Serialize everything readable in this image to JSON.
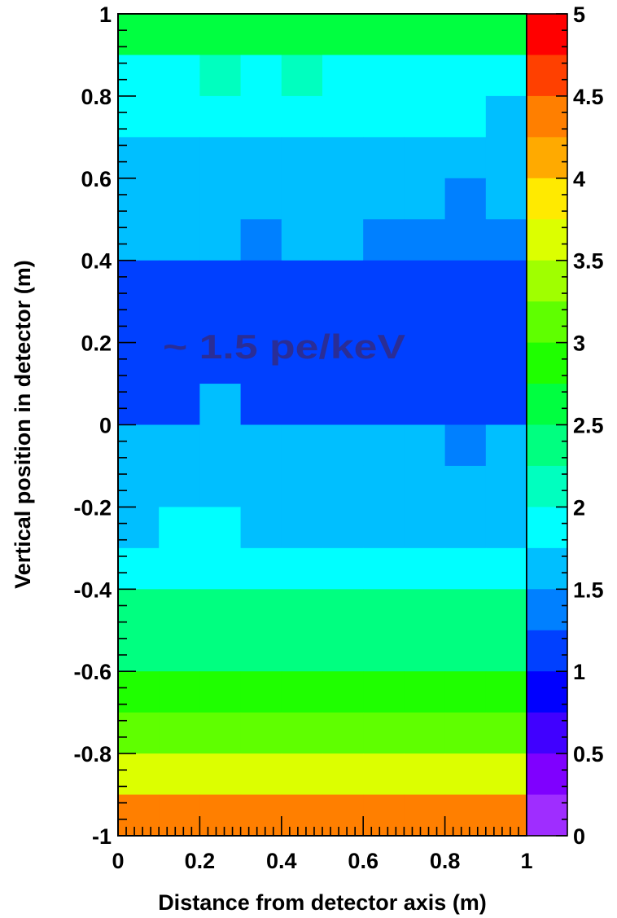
{
  "chart_data": {
    "type": "heatmap",
    "title": "",
    "xlabel": "Distance from detector axis (m)",
    "ylabel": "Vertical position in detector (m)",
    "xlim": [
      0,
      1
    ],
    "ylim": [
      -1,
      1
    ],
    "x_ticks": [
      "0",
      "0.2",
      "0.4",
      "0.6",
      "0.8",
      "1"
    ],
    "y_ticks": [
      "1",
      "0.8",
      "0.6",
      "0.4",
      "0.2",
      "0",
      "-0.2",
      "-0.4",
      "-0.6",
      "-0.8",
      "-1"
    ],
    "x_bin_edges": [
      0,
      0.1,
      0.2,
      0.3,
      0.4,
      0.5,
      0.6,
      0.7,
      0.8,
      0.9,
      1.0
    ],
    "y_bin_edges_top_down": [
      1.0,
      0.9,
      0.8,
      0.7,
      0.6,
      0.5,
      0.4,
      0.3,
      0.2,
      0.1,
      0.0,
      -0.1,
      -0.2,
      -0.3,
      -0.4,
      -0.5,
      -0.6,
      -0.7,
      -0.8,
      -0.9,
      -1.0
    ],
    "z_rows_top_down": [
      [
        2.6,
        2.6,
        2.6,
        2.6,
        2.6,
        2.6,
        2.6,
        2.6,
        2.6,
        2.6
      ],
      [
        1.9,
        1.9,
        2.1,
        1.9,
        2.1,
        1.9,
        1.9,
        1.9,
        1.9,
        1.9
      ],
      [
        1.9,
        1.9,
        1.9,
        1.9,
        1.9,
        1.9,
        1.9,
        1.9,
        1.9,
        1.6
      ],
      [
        1.6,
        1.6,
        1.6,
        1.6,
        1.6,
        1.6,
        1.6,
        1.6,
        1.6,
        1.6
      ],
      [
        1.6,
        1.6,
        1.6,
        1.6,
        1.6,
        1.6,
        1.6,
        1.6,
        1.3,
        1.6
      ],
      [
        1.6,
        1.6,
        1.6,
        1.3,
        1.6,
        1.6,
        1.3,
        1.3,
        1.3,
        1.3
      ],
      [
        1.2,
        1.2,
        1.2,
        1.2,
        1.2,
        1.2,
        1.2,
        1.2,
        1.2,
        1.2
      ],
      [
        1.2,
        1.2,
        1.2,
        1.2,
        1.2,
        1.2,
        1.2,
        1.2,
        1.2,
        1.2
      ],
      [
        1.2,
        1.2,
        1.2,
        1.2,
        1.2,
        1.2,
        1.2,
        1.2,
        1.2,
        1.2
      ],
      [
        1.2,
        1.2,
        1.6,
        1.2,
        1.2,
        1.2,
        1.2,
        1.2,
        1.2,
        1.2
      ],
      [
        1.6,
        1.6,
        1.6,
        1.6,
        1.6,
        1.6,
        1.6,
        1.6,
        1.3,
        1.6
      ],
      [
        1.6,
        1.6,
        1.6,
        1.6,
        1.6,
        1.6,
        1.6,
        1.6,
        1.6,
        1.6
      ],
      [
        1.6,
        1.9,
        1.9,
        1.6,
        1.6,
        1.6,
        1.6,
        1.6,
        1.6,
        1.6
      ],
      [
        1.9,
        1.9,
        1.9,
        1.9,
        1.9,
        1.9,
        1.9,
        1.9,
        1.9,
        1.9
      ],
      [
        2.3,
        2.3,
        2.3,
        2.3,
        2.3,
        2.3,
        2.3,
        2.3,
        2.3,
        2.3
      ],
      [
        2.5,
        2.5,
        2.5,
        2.5,
        2.5,
        2.5,
        2.5,
        2.5,
        2.5,
        2.5
      ],
      [
        2.8,
        2.8,
        2.8,
        2.8,
        2.8,
        2.8,
        2.8,
        2.8,
        2.8,
        2.8
      ],
      [
        3.2,
        3.2,
        3.2,
        3.2,
        3.2,
        3.2,
        3.2,
        3.2,
        3.2,
        3.2
      ],
      [
        3.6,
        3.6,
        3.6,
        3.6,
        3.6,
        3.6,
        3.6,
        3.6,
        3.6,
        3.6
      ],
      [
        4.4,
        4.4,
        4.4,
        4.4,
        4.4,
        4.4,
        4.4,
        4.4,
        4.4,
        4.4
      ]
    ],
    "zlim": [
      0,
      5
    ],
    "z_ticks": [
      "5",
      "4.5",
      "4",
      "3.5",
      "3",
      "2.5",
      "2",
      "1.5",
      "1",
      "0.5",
      "0"
    ],
    "palette_top_down": [
      "#ff0000",
      "#ff4000",
      "#ff7f00",
      "#ffaa00",
      "#ffea00",
      "#dcff00",
      "#a0ff00",
      "#5fff00",
      "#1fff00",
      "#00ff40",
      "#00ff80",
      "#00ffbf",
      "#00ffff",
      "#00bfff",
      "#0080ff",
      "#0040ff",
      "#0000ff",
      "#4000ff",
      "#7f00ff",
      "#9f2dff"
    ],
    "annotation": "~ 1.5 pe/keV",
    "grid": false
  },
  "colors": {
    "annotation_text": "#2a2d96",
    "axis": "#000000"
  }
}
